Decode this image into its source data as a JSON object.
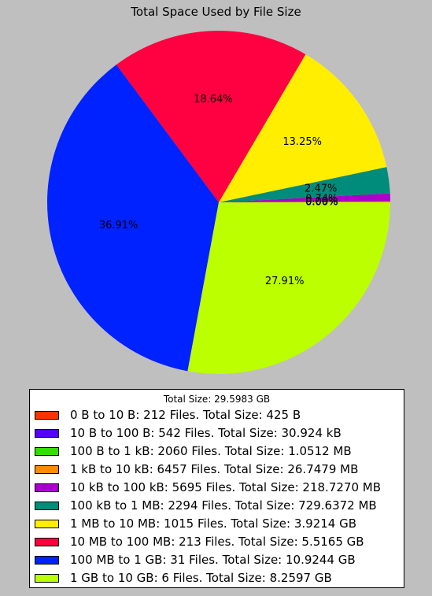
{
  "chart_data": {
    "type": "pie",
    "title": "Total Space Used by File Size",
    "legend_title": "Total Size: 29.5983 GB",
    "legend_position": "bottom",
    "start_angle_deg": 0,
    "direction": "counterclockwise",
    "slices": [
      {
        "label": "0 B to 10 B: 212 Files. Total Size: 425 B",
        "value": 0.0,
        "pct_label": "0.00%",
        "color": "#ff3300"
      },
      {
        "label": "10 B to 100 B: 542 Files. Total Size: 30.924 kB",
        "value": 0.0,
        "pct_label": "0.00%",
        "color": "#5500ff"
      },
      {
        "label": "100 B to 1 kB: 2060 Files. Total Size: 1.0512 MB",
        "value": 0.0,
        "pct_label": "0.00%",
        "color": "#33dd00"
      },
      {
        "label": "1 kB to 10 kB: 6457 Files. Total Size: 26.7479 MB",
        "value": 0.09,
        "pct_label": "0.09%",
        "color": "#ff8c00"
      },
      {
        "label": "10 kB to 100 kB: 5695 Files. Total Size: 218.7270 MB",
        "value": 0.74,
        "pct_label": "0.74%",
        "color": "#aa00cc"
      },
      {
        "label": "100 kB to 1 MB: 2294 Files. Total Size: 729.6372 MB",
        "value": 2.47,
        "pct_label": "2.47%",
        "color": "#008c7a"
      },
      {
        "label": "1 MB to 10 MB: 1015 Files. Total Size: 3.9214 GB",
        "value": 13.25,
        "pct_label": "13.25%",
        "color": "#ffee00"
      },
      {
        "label": "10 MB to 100 MB: 213 Files. Total Size: 5.5165 GB",
        "value": 18.64,
        "pct_label": "18.64%",
        "color": "#ff0040"
      },
      {
        "label": "100 MB to 1 GB: 31 Files. Total Size: 10.9244 GB",
        "value": 36.91,
        "pct_label": "36.91%",
        "color": "#0022ff"
      },
      {
        "label": "1 GB to 10 GB: 6 Files. Total Size: 8.2597 GB",
        "value": 27.91,
        "pct_label": "27.91%",
        "color": "#bbff00"
      }
    ]
  }
}
